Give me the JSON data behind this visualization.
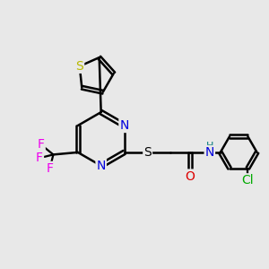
{
  "background_color": "#e8e8e8",
  "bond_color": "#000000",
  "bond_width": 1.8,
  "atom_colors": {
    "S_thiophene": "#b8b800",
    "S_sulfanyl": "#000000",
    "N": "#0000dd",
    "O": "#dd0000",
    "F": "#ee00ee",
    "Cl": "#00aa00",
    "H": "#007777",
    "C": "#000000"
  },
  "font_size": 9,
  "fig_width": 3.0,
  "fig_height": 3.0,
  "dpi": 100,
  "xlim": [
    0,
    12
  ],
  "ylim": [
    0,
    12
  ]
}
